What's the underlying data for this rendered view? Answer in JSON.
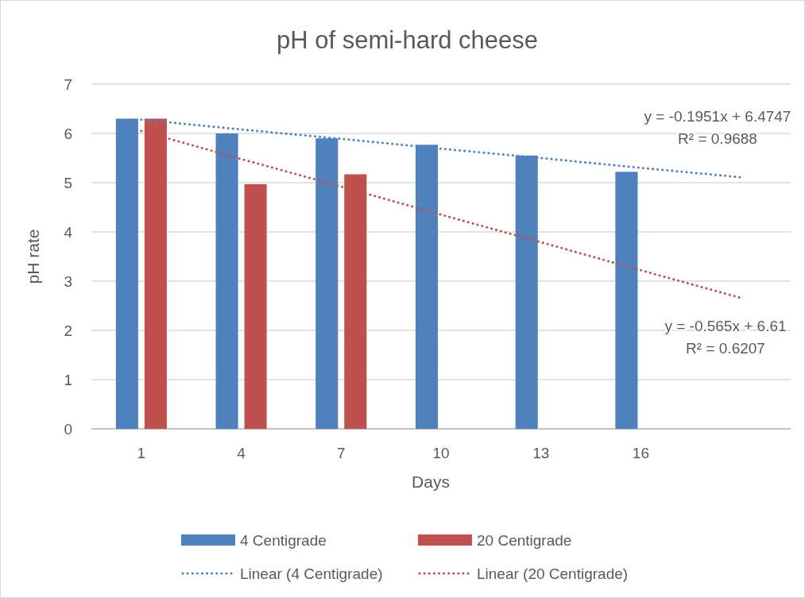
{
  "chart_data": {
    "type": "bar",
    "title": "pH of semi-hard cheese",
    "xlabel": "Days",
    "ylabel": "pH rate",
    "x": [
      1,
      4,
      7,
      10,
      13,
      16
    ],
    "xlim": [
      -0.5,
      20.5
    ],
    "xticks": [
      1,
      4,
      7,
      10,
      13,
      16
    ],
    "ylim": [
      0,
      7
    ],
    "yticks": [
      0,
      1,
      2,
      3,
      4,
      5,
      6,
      7
    ],
    "grid": "y",
    "legend": "bottom",
    "series": [
      {
        "name": "4 Centigrade",
        "color": "#4f81bd",
        "values": [
          6.3,
          6.0,
          5.9,
          5.77,
          5.55,
          5.22
        ]
      },
      {
        "name": "20 Centigrade",
        "color": "#c0504d",
        "values": [
          6.3,
          4.97,
          5.17,
          null,
          null,
          null
        ]
      },
      {
        "name": "Linear (4 Centigrade)",
        "type": "line",
        "color": "#4f81bd",
        "line_style": "dotted",
        "marker": "none",
        "x": [
          1,
          4,
          7,
          10,
          13,
          16,
          19
        ],
        "values": [
          6.28,
          6.08,
          5.89,
          5.69,
          5.5,
          5.3,
          5.11
        ]
      },
      {
        "name": "Linear (20 Centigrade)",
        "type": "line",
        "color": "#c0504d",
        "line_style": "dotted",
        "marker": "none",
        "x": [
          1,
          4,
          7,
          10,
          13,
          16,
          19
        ],
        "values": [
          6.05,
          5.48,
          4.92,
          4.35,
          3.79,
          3.22,
          2.66
        ]
      }
    ],
    "annotations": [
      "y = -0.1951x + 6.4747\nR² = 0.9688",
      "y = -0.565x + 6.61\nR² = 0.6207"
    ]
  }
}
